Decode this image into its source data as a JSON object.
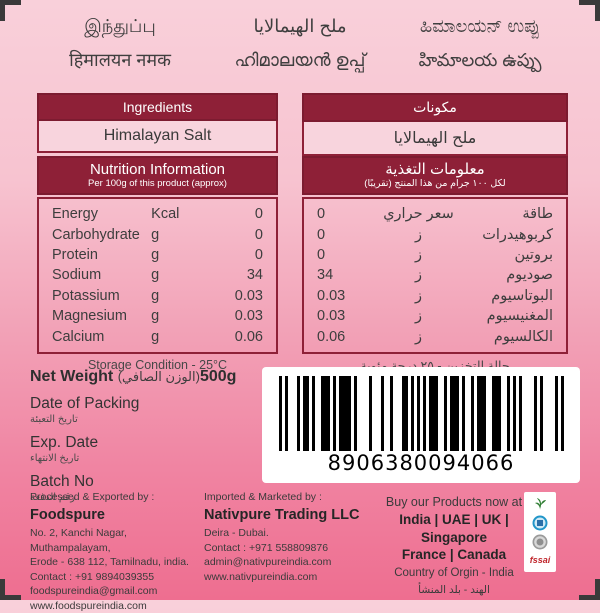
{
  "product_names": {
    "tamil": "இந்துப்பு",
    "hindi": "हिमालयन नमक",
    "arabic": "ملح الهيمالايا",
    "malayalam": "ഹിമാലയൻ ഉപ്പ്",
    "kannada": "ಹಿಮಾಲಯನ್ ಉಪ್ಪು",
    "telugu": "హిమాలయ ఉప్పు"
  },
  "ingredients": {
    "title_en": "Ingredients",
    "value_en": "Himalayan Salt",
    "title_ar": "مكونات",
    "value_ar": "ملح الهيمالايا"
  },
  "nutrition": {
    "title_en": "Nutrition Information",
    "subtitle_en": "Per 100g of this product (approx)",
    "title_ar": "معلومات التغذية",
    "subtitle_ar": "لكل ١٠٠ جرام من هذا المنتج (تقريبًا)",
    "rows_en": [
      {
        "name": "Energy",
        "unit": "Kcal",
        "value": "0"
      },
      {
        "name": "Carbohydrate",
        "unit": "g",
        "value": "0"
      },
      {
        "name": "Protein",
        "unit": "g",
        "value": "0"
      },
      {
        "name": "Sodium",
        "unit": "g",
        "value": "34"
      },
      {
        "name": "Potassium",
        "unit": "g",
        "value": "0.03"
      },
      {
        "name": "Magnesium",
        "unit": "g",
        "value": "0.03"
      },
      {
        "name": "Calcium",
        "unit": "g",
        "value": "0.06"
      }
    ],
    "rows_ar": [
      {
        "name": "طاقة",
        "unit": "سعر حراري",
        "value": "0"
      },
      {
        "name": "كربوهيدرات",
        "unit": "ز",
        "value": "0"
      },
      {
        "name": "بروتين",
        "unit": "ز",
        "value": "0"
      },
      {
        "name": "صوديوم",
        "unit": "ز",
        "value": "34"
      },
      {
        "name": "البوتاسيوم",
        "unit": "ز",
        "value": "0.03"
      },
      {
        "name": "المغنيسيوم",
        "unit": "ز",
        "value": "0.03"
      },
      {
        "name": "الكالسيوم",
        "unit": "ز",
        "value": "0.06"
      }
    ],
    "storage_en": "Storage Condition - 25°C",
    "storage_ar": "حالة التخزين - ٢٥ درجة مئوية"
  },
  "pack_info": {
    "net_weight_label": "Net Weight",
    "net_weight_ar": "(الوزن الصافي)",
    "net_weight_value": "500g",
    "date_of_packing": "Date of Packing",
    "date_of_packing_ar": "تاريخ التعبئة",
    "exp_date": "Exp. Date",
    "exp_date_ar": "تاريخ الانتهاء",
    "batch_no": "Batch No",
    "batch_no_ar": "رقم الدفعة"
  },
  "barcode": {
    "number": "8906380094066"
  },
  "footer": {
    "exporter": {
      "heading": "Processed & Exported by :",
      "name": "Foodspure",
      "address1": "No. 2, Kanchi Nagar, Muthampalayam,",
      "address2": "Erode - 638 112, Tamilnadu, india.",
      "contact": "Contact : +91 9894039355",
      "email": "foodspureindia@gmail.com",
      "website": "www.foodspureindia.com"
    },
    "importer": {
      "heading": "Imported & Marketed by :",
      "name": "Nativpure Trading LLC",
      "address1": "Deira - Dubai.",
      "contact": "Contact : +971 558809876",
      "email": "admin@nativpureindia.com",
      "website": "www.nativpureindia.com"
    },
    "availability": {
      "heading": "Buy our Products now at",
      "countries1": "India | UAE | UK | Singapore",
      "countries2": "France | Canada",
      "origin_en": "Country of Orgin - India",
      "origin_ar": "الهند - بلد المنشأ"
    },
    "fssai_label": "fssai"
  },
  "colors": {
    "maroon": "#8e2037",
    "bg_top": "#f9d0da",
    "bg_bottom": "#ee6e90",
    "light_pink": "#f8d4dd",
    "barcode_bg": "#ffffff"
  }
}
